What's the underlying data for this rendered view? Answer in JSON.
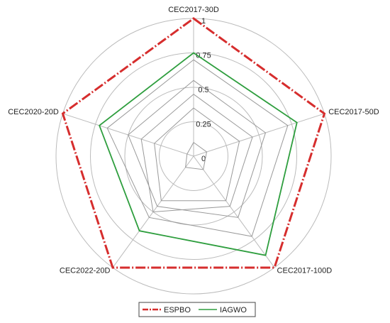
{
  "chart_data": {
    "type": "radar",
    "categories": [
      "CEC2017-30D",
      "CEC2017-50D",
      "CEC2017-100D",
      "CEC2022-20D",
      "CEC2020-20D"
    ],
    "ylim": [
      0,
      1
    ],
    "yticks": [
      0,
      0.25,
      0.5,
      0.75,
      1
    ],
    "series": [
      {
        "color": "#999999",
        "values": [
          0.7,
          0.72,
          0.72,
          0.55,
          0.66
        ]
      },
      {
        "color": "#999999",
        "values": [
          0.55,
          0.55,
          0.55,
          0.45,
          0.5
        ]
      },
      {
        "color": "#999999",
        "values": [
          0.45,
          0.45,
          0.45,
          0.5,
          0.4
        ]
      },
      {
        "color": "#999999",
        "values": [
          0.35,
          0.35,
          0.4,
          0.4,
          0.3
        ]
      },
      {
        "color": "#999999",
        "values": [
          0.1,
          0.1,
          0.12,
          0.1,
          0.05
        ]
      },
      {
        "name": "IAGWO",
        "color": "#2e9e3e",
        "values": [
          0.75,
          0.79,
          0.89,
          0.67,
          0.72
        ]
      },
      {
        "name": "ESPBO",
        "color": "#d62d2d",
        "values": [
          1,
          1,
          1,
          1,
          1
        ]
      }
    ]
  }
}
